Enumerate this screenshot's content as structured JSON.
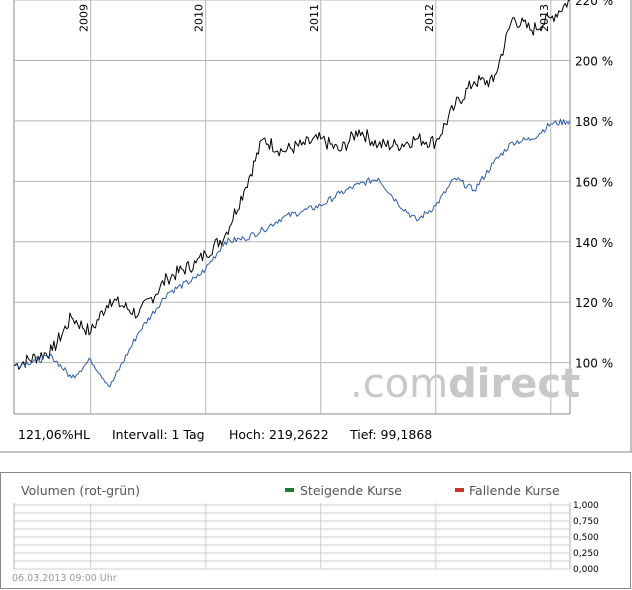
{
  "chart_data": {
    "type": "line",
    "x": [
      "2008-05",
      "2008-09",
      "2008-11",
      "2009-01",
      "2009-03",
      "2009-06",
      "2009-09",
      "2009-12",
      "2010-01",
      "2010-03",
      "2010-05",
      "2010-07",
      "2010-09",
      "2010-11",
      "2011-01",
      "2011-03",
      "2011-05",
      "2011-07",
      "2011-09",
      "2011-11",
      "2012-01",
      "2012-03",
      "2012-05",
      "2012-07",
      "2012-09",
      "2012-11",
      "2013-01",
      "2013-03"
    ],
    "series": [
      {
        "name": "",
        "color": "#000000",
        "values": [
          99,
          104,
          115,
          110,
          121,
          116,
          128,
          133,
          136,
          142,
          157,
          174,
          170,
          172,
          174,
          170,
          177,
          172,
          172,
          174,
          173,
          185,
          193,
          193,
          214,
          210,
          214,
          220
        ]
      },
      {
        "name": "",
        "color": "#2e5eab",
        "values": [
          99,
          102,
          95,
          101,
          92,
          110,
          123,
          128,
          131,
          140,
          141,
          144,
          148,
          150,
          152,
          156,
          159,
          161,
          153,
          147,
          152,
          161,
          157,
          166,
          173,
          174,
          179,
          180
        ]
      }
    ],
    "ylim": [
      83,
      220
    ],
    "yticks": [
      "100 %",
      "120 %",
      "140 %",
      "160 %",
      "180 %",
      "200 %",
      "220 %"
    ],
    "years": [
      "2009",
      "2010",
      "2011",
      "2012",
      "2013"
    ],
    "grid": true
  },
  "info": {
    "performance": "121,06%HL",
    "interval": "Intervall: 1 Tag",
    "high": "Hoch: 219,2622",
    "low": "Tief: 99,1868"
  },
  "volume": {
    "title": "Volumen (rot-grün)",
    "rising_label": "Steigende Kurse",
    "falling_label": "Fallende Kurse",
    "rising_color": "#1e7a2e",
    "falling_color": "#c0392b",
    "ticks": [
      "1,000",
      "0,750",
      "0,500",
      "0,250",
      "0,000"
    ]
  },
  "timestamp": "06.03.2013 09:00 Uhr",
  "logo": {
    "part1": ".com",
    "part2": "direct"
  }
}
